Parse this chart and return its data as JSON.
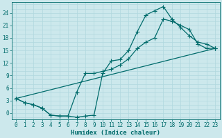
{
  "xlabel": "Humidex (Indice chaleur)",
  "bg_color": "#cce8ec",
  "grid_color": "#b0d8de",
  "line_color": "#006b6b",
  "xlim": [
    -0.5,
    23.5
  ],
  "ylim": [
    -1.5,
    26.5
  ],
  "xticks": [
    0,
    1,
    2,
    3,
    4,
    5,
    6,
    7,
    8,
    9,
    10,
    11,
    12,
    13,
    14,
    15,
    16,
    17,
    18,
    19,
    20,
    21,
    22,
    23
  ],
  "yticks": [
    0,
    3,
    6,
    9,
    12,
    15,
    18,
    21,
    24
  ],
  "line1_x": [
    0,
    1,
    2,
    3,
    4,
    5,
    6,
    7,
    8,
    9,
    10,
    11,
    12,
    13,
    14,
    15,
    16,
    17,
    18,
    19,
    20,
    21,
    22,
    23
  ],
  "line1_y": [
    3.5,
    2.5,
    2.0,
    1.2,
    -0.5,
    -0.7,
    -0.7,
    -1.0,
    -0.7,
    -0.5,
    9.5,
    12.5,
    12.8,
    15.0,
    19.5,
    23.5,
    24.5,
    25.5,
    22.5,
    20.5,
    18.5,
    17.0,
    16.5,
    15.5
  ],
  "line2_x": [
    0,
    1,
    2,
    3,
    4,
    5,
    6,
    7,
    8,
    9,
    10,
    11,
    12,
    13,
    14,
    15,
    16,
    17,
    18,
    19,
    20,
    21,
    22,
    23
  ],
  "line2_y": [
    3.5,
    2.5,
    2.0,
    1.2,
    -0.5,
    -0.7,
    -0.7,
    5.0,
    9.5,
    9.5,
    10.0,
    10.5,
    11.5,
    13.0,
    15.5,
    17.0,
    18.0,
    22.5,
    22.0,
    21.0,
    20.0,
    16.5,
    15.5,
    15.5
  ],
  "line3_x": [
    0,
    23
  ],
  "line3_y": [
    3.5,
    15.5
  ],
  "marker_style": "+",
  "linewidth": 0.9,
  "markersize": 4.0,
  "tick_labelsize": 5.5,
  "xlabel_fontsize": 6.5
}
